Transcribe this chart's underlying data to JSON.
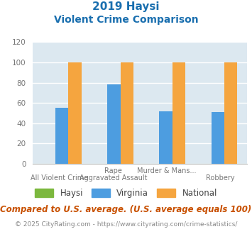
{
  "title_line1": "2019 Haysi",
  "title_line2": "Violent Crime Comparison",
  "title_color": "#1a6faf",
  "group_labels_top": [
    "",
    "Rape",
    "Murder & Mans...",
    ""
  ],
  "group_labels_bot": [
    "All Violent Crime",
    "Aggravated Assault",
    "",
    "Robbery"
  ],
  "haysi_values": [
    0,
    0,
    0,
    0
  ],
  "virginia_values": [
    55,
    78,
    52,
    51
  ],
  "national_values": [
    100,
    100,
    100,
    100
  ],
  "haysi_color": "#7cb83e",
  "virginia_color": "#4d9de0",
  "national_color": "#f5a53f",
  "ylim": [
    0,
    120
  ],
  "yticks": [
    0,
    20,
    40,
    60,
    80,
    100,
    120
  ],
  "bg_color": "#dce8f0",
  "grid_color": "#ffffff",
  "bar_width": 0.25,
  "legend_labels": [
    "Haysi",
    "Virginia",
    "National"
  ],
  "footnote1": "Compared to U.S. average. (U.S. average equals 100)",
  "footnote2": "© 2025 CityRating.com - https://www.cityrating.com/crime-statistics/",
  "footnote1_color": "#c85000",
  "footnote1_fontsize": 8.5,
  "footnote2_color": "#888888",
  "footnote2_fontsize": 6.5,
  "tick_label_color": "#777777"
}
